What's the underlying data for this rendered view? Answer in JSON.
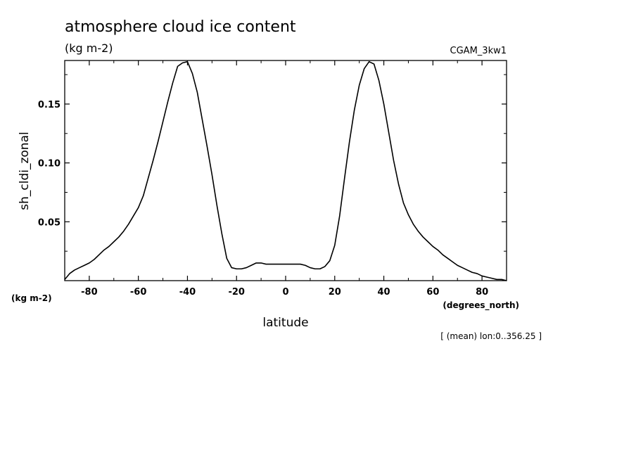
{
  "chart_data": {
    "type": "line",
    "title": "atmosphere cloud ice content",
    "subtitle": "(kg m-2)",
    "run_label": "CGAM_3kw1",
    "ylabel": "sh_cldi_zonal",
    "xlabel": "latitude",
    "xunits": "(degrees_north)",
    "yunits": "(kg m-2)",
    "footnote": "[ (mean) lon:0..356.25 ]",
    "xlim": [
      -90,
      90
    ],
    "ylim": [
      0.0,
      0.187
    ],
    "xticks": [
      -80,
      -60,
      -40,
      -20,
      0,
      20,
      40,
      60,
      80
    ],
    "xtick_labels": [
      "-80",
      "-60",
      "-40",
      "-20",
      "0",
      "20",
      "40",
      "60",
      "80"
    ],
    "yticks": [
      0.05,
      0.1,
      0.15
    ],
    "ytick_labels": [
      "0.05",
      "0.10",
      "0.15"
    ],
    "grid": false,
    "line_color": "#000000",
    "series": [
      {
        "x": [
          -90,
          -88,
          -86,
          -84,
          -82,
          -80,
          -78,
          -76,
          -74,
          -72,
          -70,
          -68,
          -66,
          -64,
          -62,
          -60,
          -58,
          -56,
          -54,
          -52,
          -50,
          -48,
          -46,
          -44,
          -42,
          -40,
          -38,
          -36,
          -34,
          -32,
          -30,
          -28,
          -26,
          -24,
          -22,
          -20,
          -18,
          -16,
          -14,
          -12,
          -10,
          -8,
          -6,
          -4,
          -2,
          0,
          2,
          4,
          6,
          8,
          10,
          12,
          14,
          16,
          18,
          20,
          22,
          24,
          26,
          28,
          30,
          32,
          34,
          36,
          38,
          40,
          42,
          44,
          46,
          48,
          50,
          52,
          54,
          56,
          58,
          60,
          62,
          64,
          66,
          68,
          70,
          72,
          74,
          76,
          78,
          80,
          82,
          84,
          86,
          88,
          90
        ],
        "y": [
          0.001,
          0.006,
          0.009,
          0.011,
          0.013,
          0.015,
          0.018,
          0.022,
          0.026,
          0.029,
          0.033,
          0.037,
          0.042,
          0.048,
          0.055,
          0.062,
          0.072,
          0.087,
          0.102,
          0.118,
          0.135,
          0.152,
          0.168,
          0.182,
          0.185,
          0.186,
          0.176,
          0.16,
          0.137,
          0.114,
          0.09,
          0.064,
          0.04,
          0.019,
          0.011,
          0.01,
          0.01,
          0.011,
          0.013,
          0.015,
          0.015,
          0.014,
          0.014,
          0.014,
          0.014,
          0.014,
          0.014,
          0.014,
          0.014,
          0.013,
          0.011,
          0.01,
          0.01,
          0.012,
          0.017,
          0.03,
          0.055,
          0.087,
          0.118,
          0.145,
          0.166,
          0.18,
          0.186,
          0.184,
          0.17,
          0.15,
          0.126,
          0.102,
          0.082,
          0.066,
          0.056,
          0.048,
          0.042,
          0.037,
          0.033,
          0.029,
          0.026,
          0.022,
          0.019,
          0.016,
          0.013,
          0.011,
          0.009,
          0.007,
          0.006,
          0.004,
          0.003,
          0.002,
          0.001,
          0.001,
          0.0
        ]
      }
    ]
  }
}
